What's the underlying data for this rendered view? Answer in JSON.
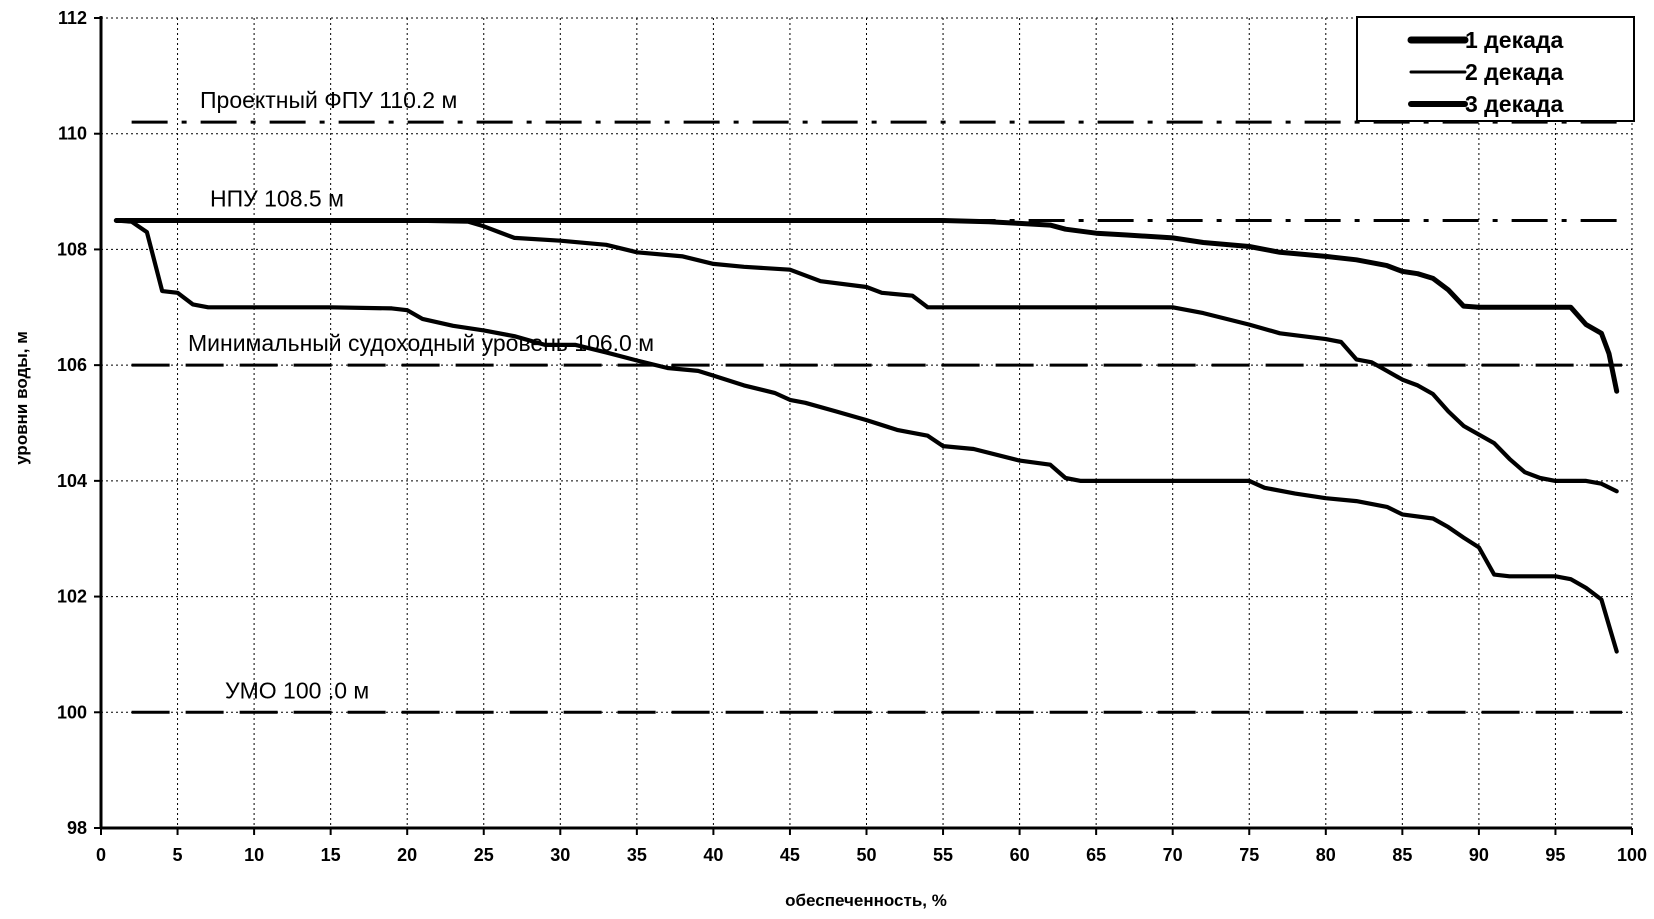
{
  "chart_data": {
    "type": "line",
    "title": "",
    "xlabel": "обеспеченность, %",
    "ylabel": "уровни воды, м",
    "xlim": [
      0,
      100
    ],
    "ylim": [
      98,
      112
    ],
    "x_ticks": [
      0,
      5,
      10,
      15,
      20,
      25,
      30,
      35,
      40,
      45,
      50,
      55,
      60,
      65,
      70,
      75,
      80,
      85,
      90,
      95,
      100
    ],
    "y_ticks": [
      98,
      100,
      102,
      104,
      106,
      108,
      110,
      112
    ],
    "grid": true,
    "legend_position": "top-right",
    "reference_lines": [
      {
        "label": "Проектный ФПУ 110.2 м",
        "y": 110.2,
        "style": "dash-dot"
      },
      {
        "label": "НПУ 108.5 м",
        "y": 108.5,
        "style": "dash-dot"
      },
      {
        "label": "Минимальный судоходный уровень 106.0 м",
        "y": 106.0,
        "style": "dash"
      },
      {
        "label": "УМО 100 .0 м",
        "y": 100.0,
        "style": "dash"
      }
    ],
    "series": [
      {
        "name": "1 декада",
        "points": [
          [
            1,
            108.5
          ],
          [
            5,
            108.5
          ],
          [
            10,
            108.5
          ],
          [
            20,
            108.5
          ],
          [
            30,
            108.5
          ],
          [
            40,
            108.5
          ],
          [
            50,
            108.5
          ],
          [
            55,
            108.5
          ],
          [
            58,
            108.48
          ],
          [
            60,
            108.45
          ],
          [
            62,
            108.42
          ],
          [
            63,
            108.35
          ],
          [
            65,
            108.28
          ],
          [
            67,
            108.25
          ],
          [
            70,
            108.2
          ],
          [
            72,
            108.12
          ],
          [
            75,
            108.05
          ],
          [
            77,
            107.95
          ],
          [
            80,
            107.88
          ],
          [
            82,
            107.82
          ],
          [
            84,
            107.72
          ],
          [
            85,
            107.62
          ],
          [
            86,
            107.58
          ],
          [
            87,
            107.5
          ],
          [
            88,
            107.3
          ],
          [
            89,
            107.02
          ],
          [
            90,
            107.0
          ],
          [
            92,
            107.0
          ],
          [
            95,
            107.0
          ],
          [
            96,
            107.0
          ],
          [
            97,
            106.7
          ],
          [
            98,
            106.55
          ],
          [
            98.5,
            106.2
          ],
          [
            99,
            105.55
          ]
        ],
        "color": "#000000"
      },
      {
        "name": "2 декада",
        "points": [
          [
            1,
            108.5
          ],
          [
            10,
            108.5
          ],
          [
            20,
            108.5
          ],
          [
            24,
            108.48
          ],
          [
            25,
            108.4
          ],
          [
            26,
            108.3
          ],
          [
            27,
            108.2
          ],
          [
            30,
            108.15
          ],
          [
            33,
            108.08
          ],
          [
            35,
            107.95
          ],
          [
            38,
            107.88
          ],
          [
            40,
            107.75
          ],
          [
            42,
            107.7
          ],
          [
            45,
            107.65
          ],
          [
            47,
            107.45
          ],
          [
            50,
            107.35
          ],
          [
            51,
            107.25
          ],
          [
            53,
            107.2
          ],
          [
            54,
            107.0
          ],
          [
            55,
            107.0
          ],
          [
            60,
            107.0
          ],
          [
            65,
            107.0
          ],
          [
            70,
            107.0
          ],
          [
            72,
            106.9
          ],
          [
            75,
            106.7
          ],
          [
            77,
            106.55
          ],
          [
            80,
            106.45
          ],
          [
            81,
            106.4
          ],
          [
            82,
            106.1
          ],
          [
            83,
            106.05
          ],
          [
            84,
            105.9
          ],
          [
            85,
            105.75
          ],
          [
            86,
            105.65
          ],
          [
            87,
            105.5
          ],
          [
            88,
            105.2
          ],
          [
            89,
            104.95
          ],
          [
            90,
            104.8
          ],
          [
            91,
            104.65
          ],
          [
            92,
            104.38
          ],
          [
            93,
            104.15
          ],
          [
            94,
            104.05
          ],
          [
            95,
            104.0
          ],
          [
            96,
            104.0
          ],
          [
            97,
            104.0
          ],
          [
            98,
            103.95
          ],
          [
            99,
            103.82
          ]
        ],
        "color": "#000000"
      },
      {
        "name": "3 декада",
        "points": [
          [
            1,
            108.5
          ],
          [
            2,
            108.48
          ],
          [
            3,
            108.3
          ],
          [
            4,
            107.28
          ],
          [
            5,
            107.25
          ],
          [
            6,
            107.05
          ],
          [
            7,
            107.0
          ],
          [
            10,
            107.0
          ],
          [
            15,
            107.0
          ],
          [
            19,
            106.98
          ],
          [
            20,
            106.95
          ],
          [
            21,
            106.8
          ],
          [
            23,
            106.68
          ],
          [
            25,
            106.6
          ],
          [
            27,
            106.5
          ],
          [
            29,
            106.35
          ],
          [
            31,
            106.35
          ],
          [
            33,
            106.22
          ],
          [
            35,
            106.08
          ],
          [
            37,
            105.95
          ],
          [
            39,
            105.9
          ],
          [
            40,
            105.82
          ],
          [
            42,
            105.65
          ],
          [
            44,
            105.52
          ],
          [
            45,
            105.4
          ],
          [
            46,
            105.35
          ],
          [
            48,
            105.2
          ],
          [
            50,
            105.05
          ],
          [
            52,
            104.88
          ],
          [
            54,
            104.78
          ],
          [
            55,
            104.6
          ],
          [
            57,
            104.55
          ],
          [
            60,
            104.35
          ],
          [
            62,
            104.28
          ],
          [
            63,
            104.05
          ],
          [
            64,
            104.0
          ],
          [
            65,
            104.0
          ],
          [
            70,
            104.0
          ],
          [
            75,
            104.0
          ],
          [
            76,
            103.88
          ],
          [
            78,
            103.78
          ],
          [
            80,
            103.7
          ],
          [
            82,
            103.65
          ],
          [
            84,
            103.55
          ],
          [
            85,
            103.42
          ],
          [
            87,
            103.35
          ],
          [
            88,
            103.2
          ],
          [
            89,
            103.02
          ],
          [
            90,
            102.85
          ],
          [
            91,
            102.38
          ],
          [
            92,
            102.35
          ],
          [
            95,
            102.35
          ],
          [
            96,
            102.3
          ],
          [
            97,
            102.15
          ],
          [
            98,
            101.95
          ],
          [
            98.5,
            101.5
          ],
          [
            99,
            101.05
          ]
        ],
        "color": "#000000"
      }
    ]
  }
}
